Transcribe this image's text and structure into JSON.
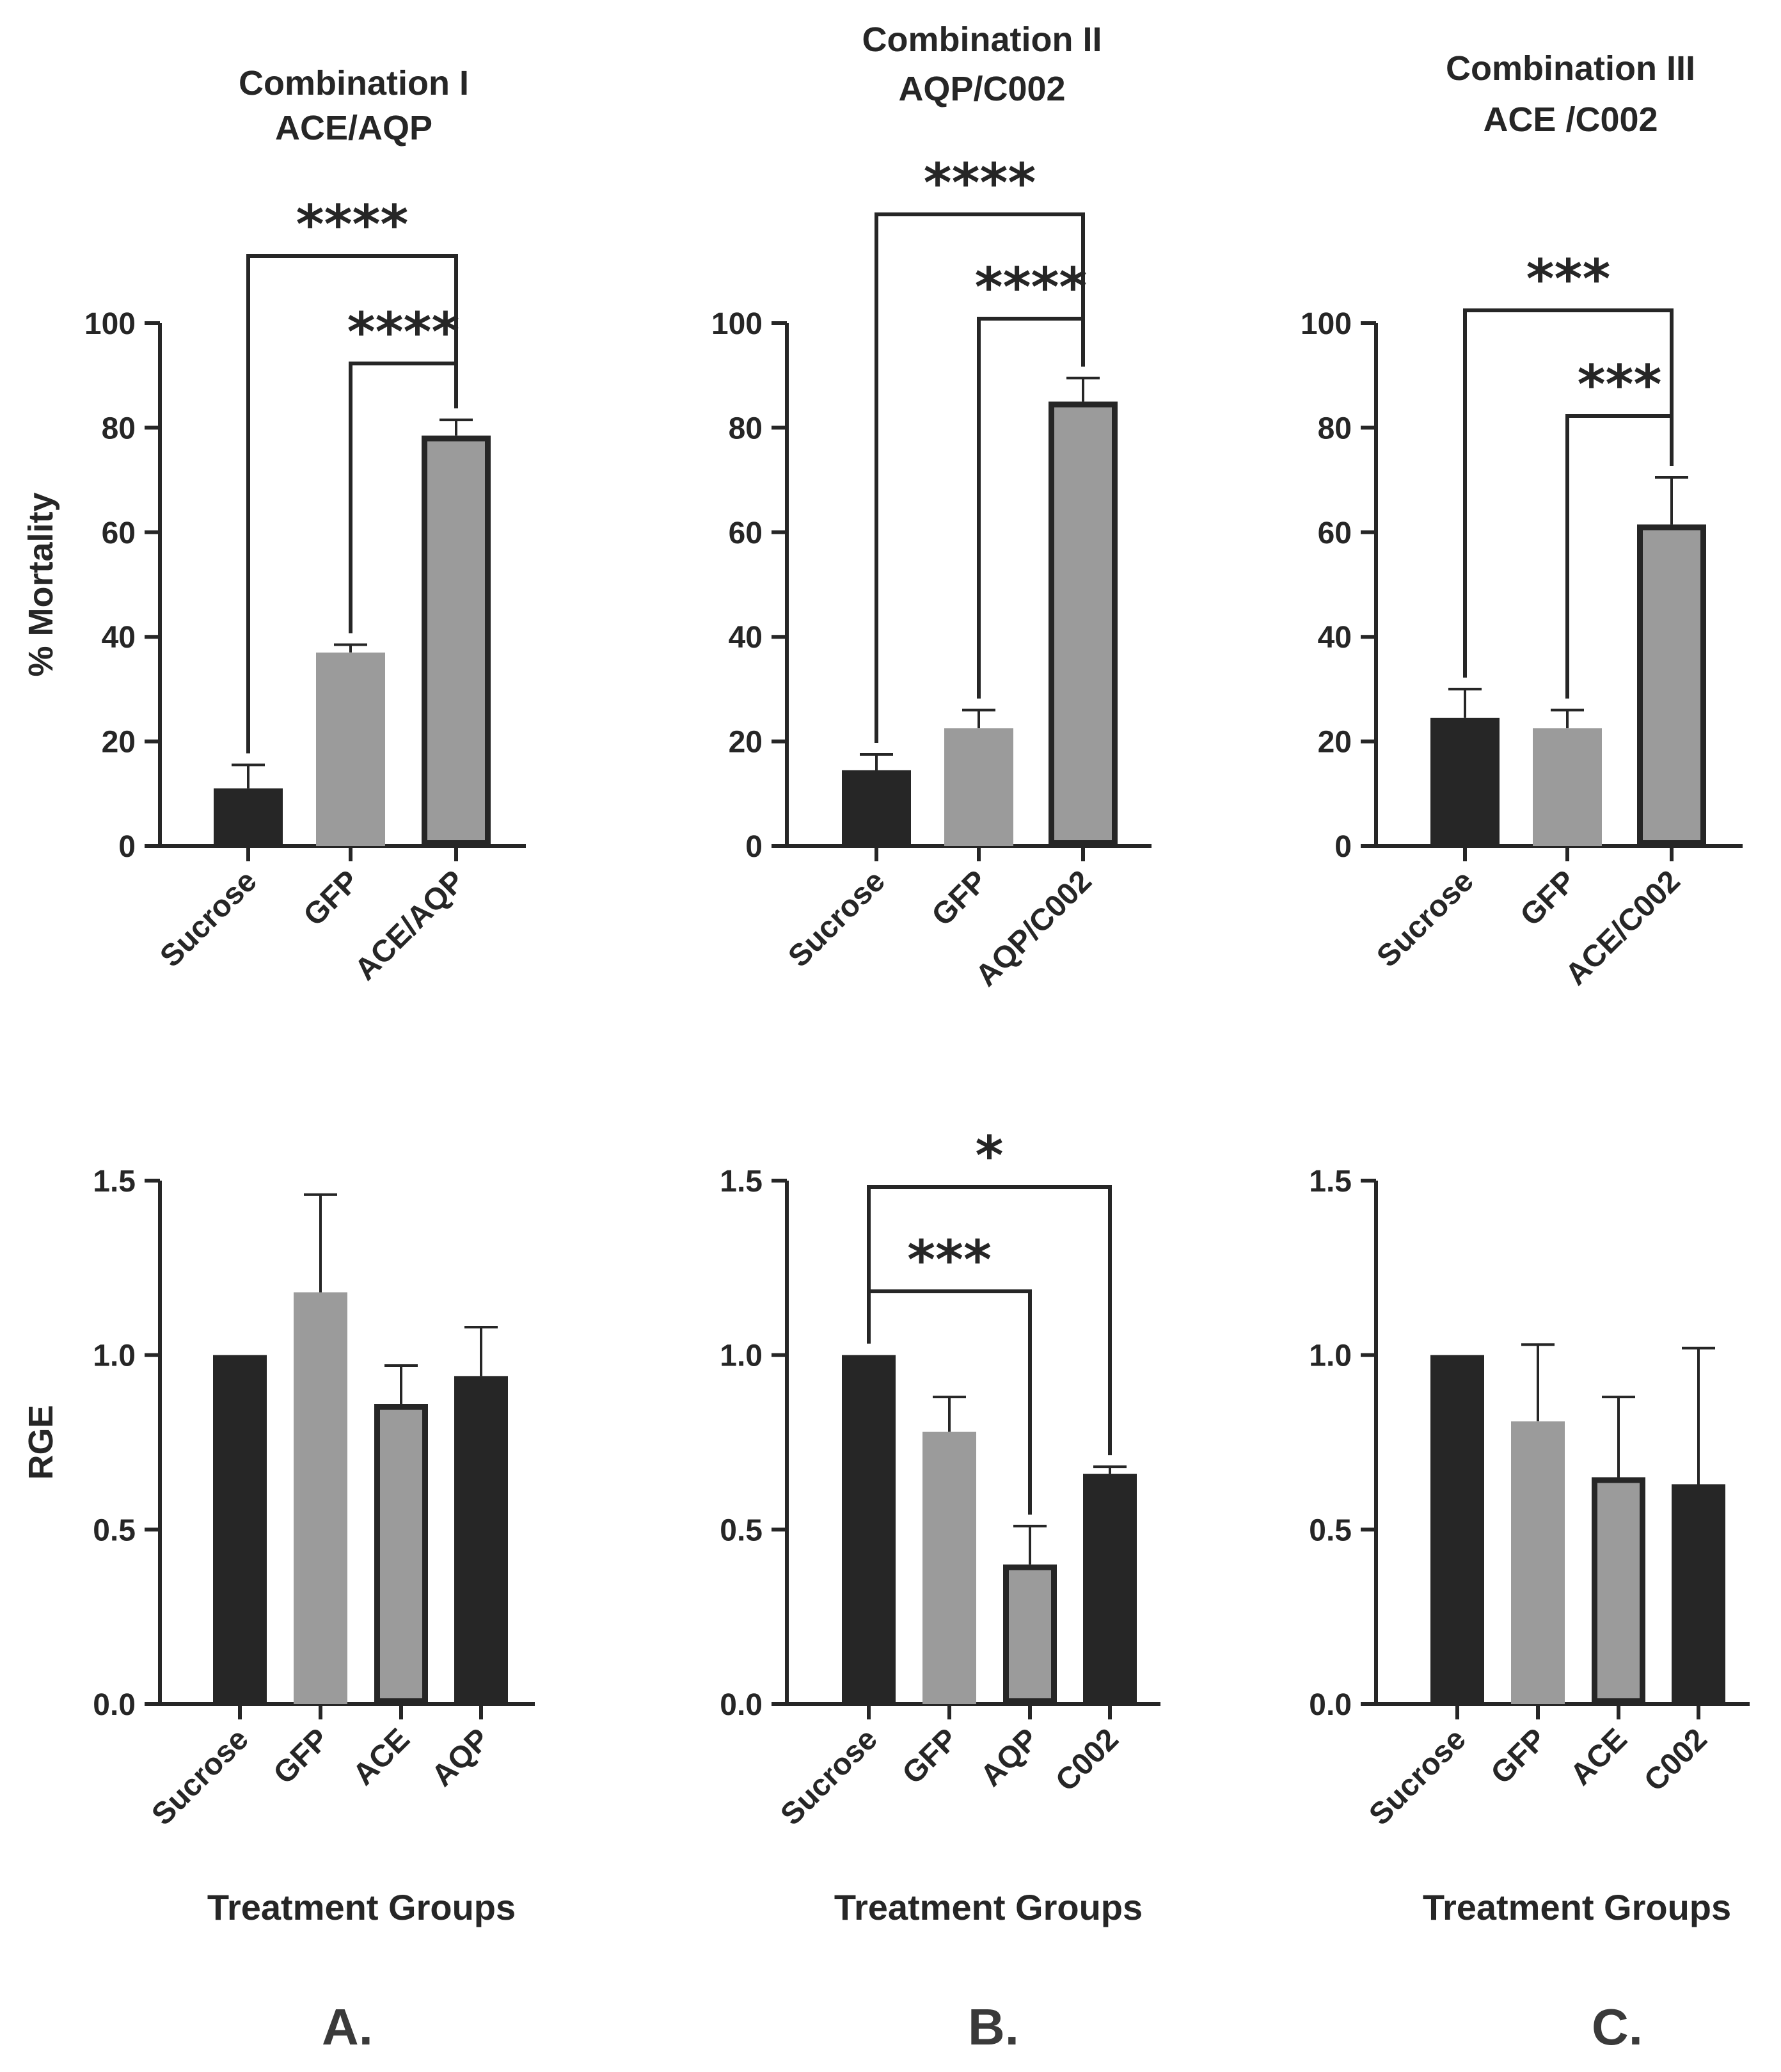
{
  "figure": {
    "panel_letters": [
      "A.",
      "B.",
      "C."
    ],
    "colors": {
      "dark_bar": "#262626",
      "gray_bar": "#9b9b9b",
      "outline": "#262626",
      "text": "#262626"
    }
  },
  "chart_data": [
    {
      "id": "A-mortality",
      "type": "bar",
      "title_lines": [
        "Combination I",
        "ACE/AQP"
      ],
      "ylabel": "% Mortality",
      "xlabel": "",
      "ylim": [
        0,
        100
      ],
      "yticks": [
        "0",
        "20",
        "40",
        "60",
        "80",
        "100"
      ],
      "ytick_values": [
        0,
        20,
        40,
        60,
        80,
        100
      ],
      "categories": [
        "Sucrose",
        "GFP",
        "ACE/AQP"
      ],
      "values": [
        11,
        37,
        78.5
      ],
      "errors": [
        4.5,
        1.5,
        3
      ],
      "bar_styles": [
        "dark",
        "gray",
        "gray-outlined"
      ],
      "significance": [
        {
          "from": 0,
          "to": 2,
          "label": "****",
          "level": 1
        },
        {
          "from": 1,
          "to": 2,
          "label": "****",
          "level": 0
        }
      ]
    },
    {
      "id": "B-mortality",
      "type": "bar",
      "title_lines": [
        "Combination II",
        "AQP/C002"
      ],
      "ylabel": "",
      "xlabel": "",
      "ylim": [
        0,
        100
      ],
      "yticks": [
        "0",
        "20",
        "40",
        "60",
        "80",
        "100"
      ],
      "ytick_values": [
        0,
        20,
        40,
        60,
        80,
        100
      ],
      "categories": [
        "Sucrose",
        "GFP",
        "AQP/C002"
      ],
      "values": [
        14.5,
        22.5,
        85
      ],
      "errors": [
        3,
        3.5,
        4.5
      ],
      "bar_styles": [
        "dark",
        "gray",
        "gray-outlined"
      ],
      "significance": [
        {
          "from": 0,
          "to": 2,
          "label": "****",
          "level": 1
        },
        {
          "from": 1,
          "to": 2,
          "label": "****",
          "level": 0
        }
      ]
    },
    {
      "id": "C-mortality",
      "type": "bar",
      "title_lines": [
        "Combination III",
        "ACE /C002"
      ],
      "ylabel": "",
      "xlabel": "",
      "ylim": [
        0,
        100
      ],
      "yticks": [
        "0",
        "20",
        "40",
        "60",
        "80",
        "100"
      ],
      "ytick_values": [
        0,
        20,
        40,
        60,
        80,
        100
      ],
      "categories": [
        "Sucrose",
        "GFP",
        "ACE/C002"
      ],
      "values": [
        24.5,
        22.5,
        61.5
      ],
      "errors": [
        5.5,
        3.5,
        9
      ],
      "bar_styles": [
        "dark",
        "gray",
        "gray-outlined"
      ],
      "significance": [
        {
          "from": 0,
          "to": 2,
          "label": "***",
          "level": 1
        },
        {
          "from": 1,
          "to": 2,
          "label": "***",
          "level": 0
        }
      ]
    },
    {
      "id": "A-rge",
      "type": "bar",
      "title_lines": [],
      "ylabel": "RGE",
      "xlabel": "Treatment Groups",
      "ylim": [
        0,
        1.5
      ],
      "yticks": [
        "0.0",
        "0.5",
        "1.0",
        "1.5"
      ],
      "ytick_values": [
        0,
        0.5,
        1.0,
        1.5
      ],
      "categories": [
        "Sucrose",
        "GFP",
        "ACE",
        "AQP"
      ],
      "values": [
        1.0,
        1.18,
        0.86,
        0.94
      ],
      "errors": [
        0,
        0.28,
        0.11,
        0.14
      ],
      "bar_styles": [
        "dark",
        "gray",
        "gray-outlined",
        "dark"
      ],
      "significance": []
    },
    {
      "id": "B-rge",
      "type": "bar",
      "title_lines": [],
      "ylabel": "",
      "xlabel": "Treatment Groups",
      "ylim": [
        0,
        1.5
      ],
      "yticks": [
        "0.0",
        "0.5",
        "1.0",
        "1.5"
      ],
      "ytick_values": [
        0,
        0.5,
        1.0,
        1.5
      ],
      "categories": [
        "Sucrose",
        "GFP",
        "AQP",
        "C002"
      ],
      "values": [
        1.0,
        0.78,
        0.4,
        0.66
      ],
      "errors": [
        0,
        0.1,
        0.11,
        0.02
      ],
      "bar_styles": [
        "dark",
        "gray",
        "gray-outlined",
        "dark"
      ],
      "significance": [
        {
          "from": 0,
          "to": 3,
          "label": "*",
          "level": 1
        },
        {
          "from": 0,
          "to": 2,
          "label": "***",
          "level": 0
        }
      ]
    },
    {
      "id": "C-rge",
      "type": "bar",
      "title_lines": [],
      "ylabel": "",
      "xlabel": "Treatment Groups",
      "ylim": [
        0,
        1.5
      ],
      "yticks": [
        "0.0",
        "0.5",
        "1.0",
        "1.5"
      ],
      "ytick_values": [
        0,
        0.5,
        1.0,
        1.5
      ],
      "categories": [
        "Sucrose",
        "GFP",
        "ACE",
        "C002"
      ],
      "values": [
        1.0,
        0.81,
        0.65,
        0.63
      ],
      "errors": [
        0,
        0.22,
        0.23,
        0.39
      ],
      "bar_styles": [
        "dark",
        "gray",
        "gray-outlined",
        "dark"
      ],
      "significance": []
    }
  ]
}
